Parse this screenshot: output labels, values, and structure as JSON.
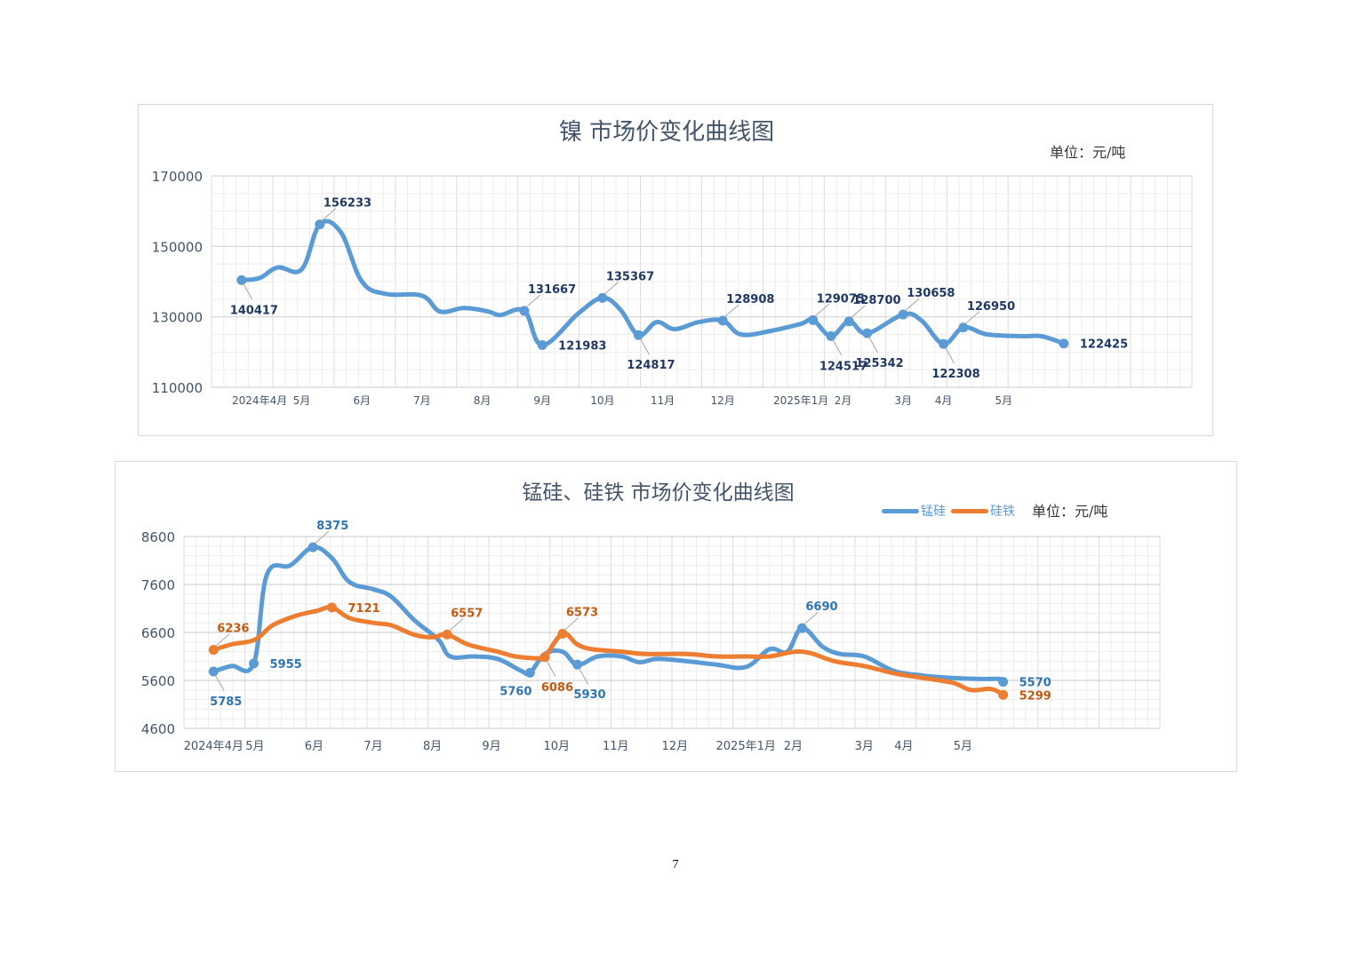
{
  "page_number": "7",
  "chart_data": [
    {
      "type": "line",
      "title": "镍 市场价变化曲线图",
      "unit_label": "单位：元/吨",
      "ylim": [
        110000,
        170000
      ],
      "yticks": [
        "110000",
        "130000",
        "150000",
        "170000"
      ],
      "x_range": [
        -0.5,
        15.8
      ],
      "xticks": [
        {
          "label": "2024年4月",
          "x": 0.3
        },
        {
          "label": "5月",
          "x": 1
        },
        {
          "label": "6月",
          "x": 2
        },
        {
          "label": "7月",
          "x": 3
        },
        {
          "label": "8月",
          "x": 4
        },
        {
          "label": "9月",
          "x": 5
        },
        {
          "label": "10月",
          "x": 6
        },
        {
          "label": "11月",
          "x": 7
        },
        {
          "label": "12月",
          "x": 8
        },
        {
          "label": "2025年1月",
          "x": 9.3
        },
        {
          "label": "2月",
          "x": 10
        },
        {
          "label": "3月",
          "x": 11
        },
        {
          "label": "4月",
          "x": 11.67
        },
        {
          "label": "5月",
          "x": 12.67
        }
      ],
      "series": [
        {
          "name": "镍",
          "color": "#5b9bd5",
          "points": [
            [
              0,
              140417
            ],
            [
              0.3,
              141000
            ],
            [
              0.6,
              144000
            ],
            [
              1.0,
              143500
            ],
            [
              1.3,
              156233
            ],
            [
              1.65,
              154000
            ],
            [
              2.0,
              140000
            ],
            [
              2.4,
              136500
            ],
            [
              3.0,
              136000
            ],
            [
              3.3,
              131500
            ],
            [
              3.7,
              132500
            ],
            [
              4.1,
              131500
            ],
            [
              4.3,
              130500
            ],
            [
              4.7,
              131667
            ],
            [
              5.0,
              121983
            ],
            [
              5.6,
              131000
            ],
            [
              6.0,
              135367
            ],
            [
              6.3,
              132000
            ],
            [
              6.6,
              124817
            ],
            [
              6.9,
              128500
            ],
            [
              7.2,
              126500
            ],
            [
              7.6,
              128500
            ],
            [
              8.0,
              128908
            ],
            [
              8.3,
              125000
            ],
            [
              8.8,
              126000
            ],
            [
              9.3,
              128000
            ],
            [
              9.5,
              129075
            ],
            [
              9.8,
              124517
            ],
            [
              10.1,
              128700
            ],
            [
              10.4,
              125342
            ],
            [
              11.0,
              130658
            ],
            [
              11.3,
              129000
            ],
            [
              11.67,
              122308
            ],
            [
              12.0,
              126950
            ],
            [
              12.4,
              125000
            ],
            [
              13.0,
              124500
            ],
            [
              13.3,
              124500
            ],
            [
              13.67,
              122425
            ]
          ],
          "markers": [
            {
              "x": 0,
              "y": 140417,
              "label": "140417",
              "pos": "below"
            },
            {
              "x": 1.3,
              "y": 156233,
              "label": "156233",
              "pos": "above"
            },
            {
              "x": 4.7,
              "y": 131667,
              "label": "131667",
              "pos": "above"
            },
            {
              "x": 5.0,
              "y": 121983,
              "label": "121983",
              "pos": "right"
            },
            {
              "x": 6.0,
              "y": 135367,
              "label": "135367",
              "pos": "above"
            },
            {
              "x": 6.6,
              "y": 124817,
              "label": "124817",
              "pos": "below"
            },
            {
              "x": 8.0,
              "y": 128908,
              "label": "128908",
              "pos": "above"
            },
            {
              "x": 9.5,
              "y": 129075,
              "label": "129075",
              "pos": "above"
            },
            {
              "x": 9.8,
              "y": 124517,
              "label": "124517",
              "pos": "below"
            },
            {
              "x": 10.1,
              "y": 128700,
              "label": "128700",
              "pos": "above"
            },
            {
              "x": 10.4,
              "y": 125342,
              "label": "125342",
              "pos": "below"
            },
            {
              "x": 11.0,
              "y": 130658,
              "label": "130658",
              "pos": "above"
            },
            {
              "x": 11.67,
              "y": 122308,
              "label": "122308",
              "pos": "below"
            },
            {
              "x": 12.0,
              "y": 126950,
              "label": "126950",
              "pos": "above"
            },
            {
              "x": 13.67,
              "y": 122425,
              "label": "122425",
              "pos": "right"
            }
          ]
        }
      ]
    },
    {
      "type": "line",
      "title": "锰硅、硅铁 市场价变化曲线图",
      "unit_label": "单位：元/吨",
      "ylim": [
        4600,
        8600
      ],
      "yticks": [
        "4600",
        "5600",
        "6600",
        "7600",
        "8600"
      ],
      "x_range": [
        -0.5,
        16
      ],
      "xticks": [
        {
          "label": "2024年4月",
          "x": 0
        },
        {
          "label": "5月",
          "x": 0.7
        },
        {
          "label": "6月",
          "x": 1.7
        },
        {
          "label": "7月",
          "x": 2.7
        },
        {
          "label": "8月",
          "x": 3.7
        },
        {
          "label": "9月",
          "x": 4.7
        },
        {
          "label": "10月",
          "x": 5.8
        },
        {
          "label": "11月",
          "x": 6.8
        },
        {
          "label": "12月",
          "x": 7.8
        },
        {
          "label": "2025年1月",
          "x": 9.0
        },
        {
          "label": "2月",
          "x": 9.8
        },
        {
          "label": "3月",
          "x": 11.0
        },
        {
          "label": "4月",
          "x": 11.67
        },
        {
          "label": "5月",
          "x": 12.67
        }
      ],
      "legend": [
        {
          "name": "锰硅",
          "color": "#5b9bd5"
        },
        {
          "name": "硅铁",
          "color": "#ed7d31"
        }
      ],
      "series": [
        {
          "name": "锰硅",
          "color": "#5b9bd5",
          "points": [
            [
              0,
              5785
            ],
            [
              0.3,
              5900
            ],
            [
              0.68,
              5955
            ],
            [
              0.9,
              7800
            ],
            [
              1.3,
              8000
            ],
            [
              1.68,
              8375
            ],
            [
              2.0,
              8150
            ],
            [
              2.3,
              7650
            ],
            [
              2.7,
              7500
            ],
            [
              3.0,
              7350
            ],
            [
              3.4,
              6850
            ],
            [
              3.8,
              6450
            ],
            [
              4.0,
              6100
            ],
            [
              4.4,
              6100
            ],
            [
              4.8,
              6050
            ],
            [
              5.2,
              5800
            ],
            [
              5.35,
              5760
            ],
            [
              5.6,
              6150
            ],
            [
              5.9,
              6200
            ],
            [
              6.15,
              5930
            ],
            [
              6.5,
              6100
            ],
            [
              6.9,
              6100
            ],
            [
              7.2,
              5980
            ],
            [
              7.5,
              6050
            ],
            [
              8.0,
              6000
            ],
            [
              8.5,
              5930
            ],
            [
              9.0,
              5880
            ],
            [
              9.4,
              6250
            ],
            [
              9.7,
              6200
            ],
            [
              9.95,
              6690
            ],
            [
              10.3,
              6300
            ],
            [
              10.6,
              6150
            ],
            [
              11.0,
              6100
            ],
            [
              11.5,
              5800
            ],
            [
              12.0,
              5700
            ],
            [
              12.5,
              5650
            ],
            [
              13.0,
              5630
            ],
            [
              13.3,
              5630
            ],
            [
              13.35,
              5570
            ]
          ],
          "markers": [
            {
              "x": 0,
              "y": 5785,
              "label": "5785",
              "pos": "below"
            },
            {
              "x": 0.68,
              "y": 5955,
              "label": "5955",
              "pos": "right"
            },
            {
              "x": 1.68,
              "y": 8375,
              "label": "8375",
              "pos": "above"
            },
            {
              "x": 5.35,
              "y": 5760,
              "label": "5760",
              "pos": "belowleft"
            },
            {
              "x": 6.15,
              "y": 5930,
              "label": "5930",
              "pos": "below"
            },
            {
              "x": 9.95,
              "y": 6690,
              "label": "6690",
              "pos": "above"
            },
            {
              "x": 13.35,
              "y": 5570,
              "label": "5570",
              "pos": "right"
            }
          ]
        },
        {
          "name": "硅铁",
          "color": "#ed7d31",
          "points": [
            [
              0,
              6236
            ],
            [
              0.3,
              6350
            ],
            [
              0.7,
              6450
            ],
            [
              1.0,
              6750
            ],
            [
              1.4,
              6950
            ],
            [
              1.75,
              7050
            ],
            [
              2.0,
              7121
            ],
            [
              2.3,
              6900
            ],
            [
              2.7,
              6800
            ],
            [
              3.0,
              6750
            ],
            [
              3.4,
              6550
            ],
            [
              3.7,
              6500
            ],
            [
              3.95,
              6557
            ],
            [
              4.3,
              6350
            ],
            [
              4.8,
              6200
            ],
            [
              5.1,
              6100
            ],
            [
              5.5,
              6060
            ],
            [
              5.6,
              6086
            ],
            [
              5.9,
              6573
            ],
            [
              6.15,
              6350
            ],
            [
              6.4,
              6250
            ],
            [
              6.9,
              6200
            ],
            [
              7.3,
              6150
            ],
            [
              8.0,
              6150
            ],
            [
              8.5,
              6100
            ],
            [
              9.0,
              6100
            ],
            [
              9.4,
              6100
            ],
            [
              9.95,
              6200
            ],
            [
              10.5,
              6000
            ],
            [
              11.0,
              5900
            ],
            [
              11.5,
              5750
            ],
            [
              12.0,
              5650
            ],
            [
              12.5,
              5550
            ],
            [
              12.8,
              5400
            ],
            [
              13.15,
              5420
            ],
            [
              13.35,
              5299
            ]
          ],
          "markers": [
            {
              "x": 0,
              "y": 6236,
              "label": "6236",
              "pos": "above"
            },
            {
              "x": 2.0,
              "y": 7121,
              "label": "7121",
              "pos": "right"
            },
            {
              "x": 3.95,
              "y": 6557,
              "label": "6557",
              "pos": "above"
            },
            {
              "x": 5.6,
              "y": 6086,
              "label": "6086",
              "pos": "below"
            },
            {
              "x": 5.9,
              "y": 6573,
              "label": "6573",
              "pos": "above"
            },
            {
              "x": 13.35,
              "y": 5299,
              "label": "5299",
              "pos": "right"
            }
          ]
        }
      ]
    }
  ]
}
